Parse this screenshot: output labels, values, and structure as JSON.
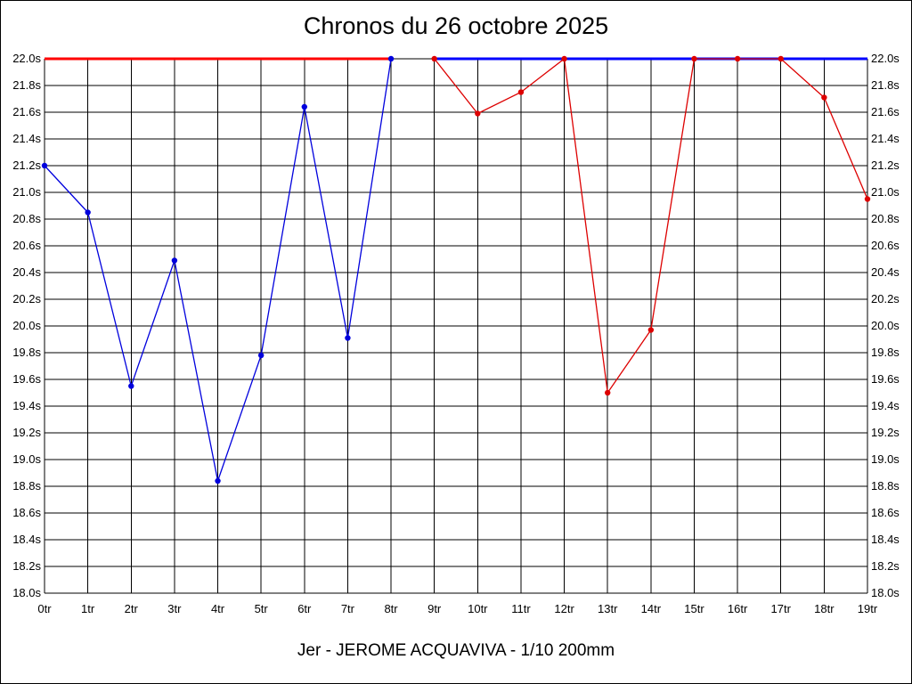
{
  "chart_data": {
    "type": "line",
    "title": "Chronos du 26 octobre 2025",
    "subtitle": "Jer - JEROME ACQUAVIVA - 1/10 200mm",
    "ylim": [
      18.0,
      22.0
    ],
    "y_tick_step": 0.2,
    "y_tick_suffix": "s",
    "x_categories": [
      "0tr",
      "1tr",
      "2tr",
      "3tr",
      "4tr",
      "5tr",
      "6tr",
      "7tr",
      "8tr",
      "9tr",
      "10tr",
      "11tr",
      "12tr",
      "13tr",
      "14tr",
      "15tr",
      "16tr",
      "17tr",
      "18tr",
      "19tr"
    ],
    "grid": true,
    "series": [
      {
        "color": "#0000dd",
        "x": [
          0,
          1,
          2,
          3,
          4,
          5,
          6,
          7,
          8
        ],
        "values": [
          21.2,
          20.85,
          19.55,
          20.49,
          18.84,
          19.78,
          21.64,
          19.91,
          22.0
        ]
      },
      {
        "color": "#dd0000",
        "x": [
          9,
          10,
          11,
          12,
          13,
          14,
          15,
          16,
          17,
          18,
          19
        ],
        "values": [
          22.0,
          21.59,
          21.75,
          22.0,
          19.5,
          19.97,
          22.0,
          22.0,
          22.0,
          21.71,
          20.95
        ]
      }
    ],
    "top_lines": [
      {
        "color": "#ff0000",
        "from": 0,
        "to": 8
      },
      {
        "color": "#0000ff",
        "from": 9,
        "to": 19
      }
    ]
  }
}
